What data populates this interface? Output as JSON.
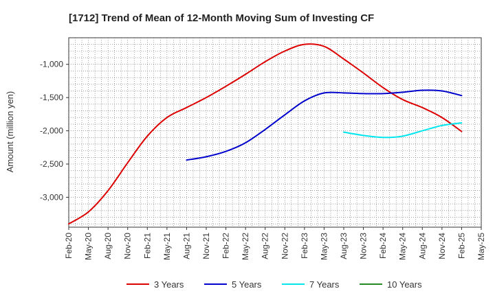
{
  "chart_data": {
    "type": "line",
    "title": "[1712]  Trend of Mean of 12-Month Moving Sum of Investing CF",
    "xlabel": "",
    "ylabel": "Amount (million yen)",
    "ylim": [
      -3450,
      -600
    ],
    "yticks": [
      -1000,
      -1500,
      -2000,
      -2500,
      -3000
    ],
    "ytick_labels": [
      "-1,000",
      "-1,500",
      "-2,000",
      "-2,500",
      "-3,000"
    ],
    "xticks": [
      "Feb-20",
      "May-20",
      "Aug-20",
      "Nov-20",
      "Feb-21",
      "May-21",
      "Aug-21",
      "Nov-21",
      "Feb-22",
      "May-22",
      "Aug-22",
      "Nov-22",
      "Feb-23",
      "May-23",
      "Aug-23",
      "Nov-23",
      "Feb-24",
      "May-24",
      "Aug-24",
      "Nov-24",
      "Feb-25",
      "May-25"
    ],
    "grid": true,
    "legend_position": "bottom",
    "series": [
      {
        "name": "3 Years",
        "color": "#dd0000",
        "points": [
          [
            0,
            -3400
          ],
          [
            3,
            -3220
          ],
          [
            6,
            -2900
          ],
          [
            9,
            -2480
          ],
          [
            12,
            -2080
          ],
          [
            15,
            -1800
          ],
          [
            18,
            -1650
          ],
          [
            21,
            -1500
          ],
          [
            24,
            -1330
          ],
          [
            27,
            -1150
          ],
          [
            30,
            -960
          ],
          [
            33,
            -800
          ],
          [
            36,
            -700
          ],
          [
            39,
            -730
          ],
          [
            42,
            -920
          ],
          [
            45,
            -1130
          ],
          [
            48,
            -1350
          ],
          [
            51,
            -1530
          ],
          [
            54,
            -1650
          ],
          [
            57,
            -1800
          ],
          [
            60,
            -2010
          ]
        ]
      },
      {
        "name": "5 Years",
        "color": "#0000cc",
        "points": [
          [
            18,
            -2440
          ],
          [
            21,
            -2390
          ],
          [
            24,
            -2310
          ],
          [
            27,
            -2180
          ],
          [
            30,
            -1980
          ],
          [
            33,
            -1760
          ],
          [
            36,
            -1550
          ],
          [
            39,
            -1430
          ],
          [
            42,
            -1430
          ],
          [
            45,
            -1440
          ],
          [
            48,
            -1440
          ],
          [
            51,
            -1420
          ],
          [
            54,
            -1390
          ],
          [
            57,
            -1400
          ],
          [
            60,
            -1470
          ]
        ]
      },
      {
        "name": "7 Years",
        "color": "#00e5ee",
        "points": [
          [
            42,
            -2020
          ],
          [
            45,
            -2070
          ],
          [
            48,
            -2100
          ],
          [
            51,
            -2080
          ],
          [
            54,
            -2000
          ],
          [
            57,
            -1920
          ],
          [
            60,
            -1880
          ]
        ]
      },
      {
        "name": "10 Years",
        "color": "#228b22",
        "points": []
      }
    ]
  }
}
